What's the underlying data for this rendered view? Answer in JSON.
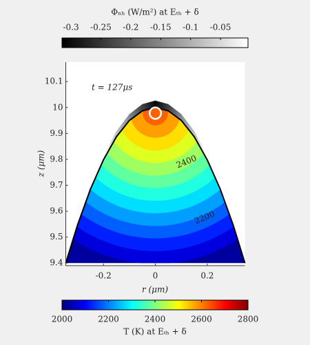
{
  "chart_data": {
    "type": "contour",
    "colorbar_top": {
      "label": "Φₙₕ (W/m²) at Eₜₕ + δ",
      "clim": [
        -0.315,
        -0.004
      ],
      "ticks": [
        -0.3,
        -0.25,
        -0.2,
        -0.15,
        -0.1,
        -0.05
      ],
      "colormap": "gray"
    },
    "annotation": "t = 127μs",
    "xlabel": "r (μm)",
    "ylabel": "z (μm)",
    "xlim": [
      -0.345,
      0.345
    ],
    "xticks": [
      -0.2,
      0,
      0.2
    ],
    "ylim": [
      9.39,
      10.175
    ],
    "yticks": [
      9.4,
      9.5,
      9.6,
      9.7,
      9.8,
      9.9,
      10,
      10.1
    ],
    "surface": {
      "r": [
        -0.345,
        -0.3,
        -0.25,
        -0.2,
        -0.15,
        -0.1,
        -0.05,
        0,
        0.05,
        0.1,
        0.15,
        0.2,
        0.25,
        0.3,
        0.345
      ],
      "z": [
        9.4,
        9.546,
        9.685,
        9.798,
        9.887,
        9.95,
        9.987,
        10.0,
        9.987,
        9.95,
        9.887,
        9.798,
        9.685,
        9.546,
        9.4
      ]
    },
    "hot_spot": {
      "r": 0,
      "z": 9.98
    },
    "levels": [
      2000,
      2050,
      2100,
      2150,
      2200,
      2250,
      2300,
      2350,
      2400,
      2450,
      2500,
      2550,
      2600
    ],
    "level_radius": [
      0.7,
      0.583,
      0.534,
      0.485,
      0.437,
      0.388,
      0.34,
      0.291,
      0.243,
      0.194,
      0.146,
      0.097,
      0.049
    ],
    "contour_labels": [
      {
        "level": 2400,
        "r": 0.12,
        "z": 9.79
      },
      {
        "level": 2200,
        "r": 0.19,
        "z": 9.575
      }
    ],
    "marker": {
      "r": 0,
      "z": 9.978,
      "radius": 0.022
    },
    "colorbar": {
      "label": "T (K) at Eₜₕ + δ",
      "clim": [
        2000,
        2800
      ],
      "ticks": [
        2000,
        2200,
        2400,
        2600,
        2800
      ],
      "colormap": "jet"
    }
  }
}
